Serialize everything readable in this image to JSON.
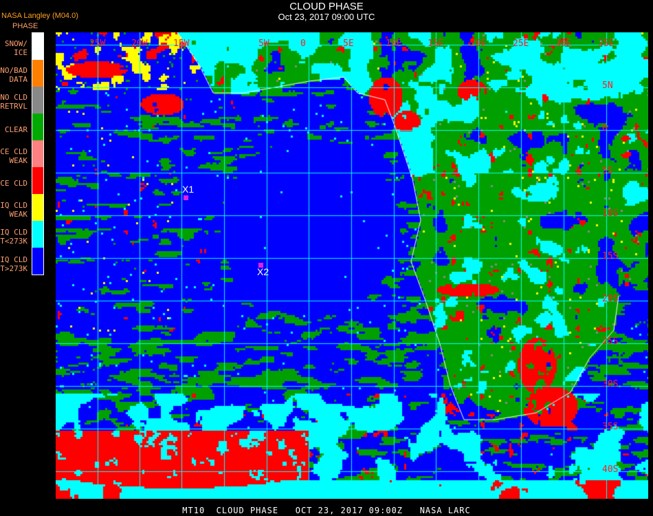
{
  "header": {
    "title": "CLOUD PHASE",
    "subtitle": "Oct 23, 2017 09:00 UTC",
    "producer": "NASA Langley (M04.0)"
  },
  "legend": {
    "title": "PHASE",
    "items": [
      {
        "label1": "SNOW/",
        "label2": "ICE",
        "color": "#ffffff"
      },
      {
        "label1": "NO/BAD",
        "label2": "DATA",
        "color": "#ff8000"
      },
      {
        "label1": "NO CLD",
        "label2": "RETRVL",
        "color": "#888888"
      },
      {
        "label1": "",
        "label2": "CLEAR",
        "color": "#00aa00"
      },
      {
        "label1": "ICE CLD",
        "label2": "WEAK",
        "color": "#ff8080"
      },
      {
        "label1": "",
        "label2": "ICE CLD",
        "color": "#ff0000"
      },
      {
        "label1": "LIQ CLD",
        "label2": "WEAK",
        "color": "#ffff00"
      },
      {
        "label1": "LIQ CLD",
        "label2": "T<273K",
        "color": "#00ffff"
      },
      {
        "label1": "LIQ CLD",
        "label2": "T>273K",
        "color": "#0000ff"
      }
    ]
  },
  "map": {
    "longitude_labels": [
      "25W",
      "20W",
      "15W",
      "5W",
      "0",
      "5E",
      "10E",
      "15E",
      "20E",
      "25E",
      "30E",
      "35E"
    ],
    "latitude_labels": [
      "5N",
      "0",
      "5S",
      "10S",
      "15S",
      "20S",
      "25S",
      "30S",
      "35S",
      "40S"
    ],
    "grid_color": "#00ffff",
    "label_color": "#ff2020",
    "coastline_color": "#ffffff",
    "markers": [
      {
        "label": "X1",
        "color": "#e020e0"
      },
      {
        "label": "X2",
        "color": "#e020e0"
      }
    ]
  },
  "footer": {
    "text": "MT10  CLOUD PHASE   OCT 23, 2017 09:00Z   NASA LARC"
  }
}
